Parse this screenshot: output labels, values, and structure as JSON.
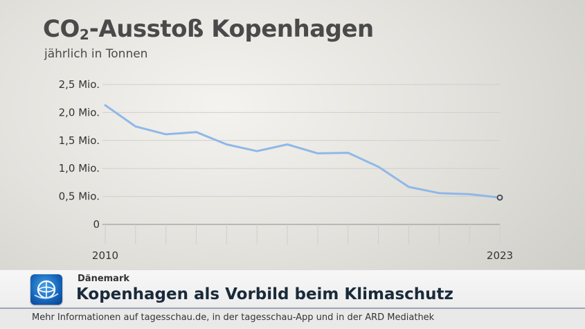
{
  "chart_data": {
    "type": "line",
    "title_main": "CO",
    "title_sub": "2",
    "title_rest": "-Ausstoß Kopenhagen",
    "subtitle": "jährlich in Tonnen",
    "x": [
      2010,
      2011,
      2012,
      2013,
      2014,
      2015,
      2016,
      2017,
      2018,
      2019,
      2020,
      2021,
      2022,
      2023
    ],
    "series": [
      {
        "values": [
          2.13,
          1.75,
          1.61,
          1.65,
          1.43,
          1.31,
          1.43,
          1.27,
          1.28,
          1.03,
          0.67,
          0.56,
          0.54,
          0.48
        ]
      }
    ],
    "yticks": [
      0,
      0.5,
      1.0,
      1.5,
      2.0,
      2.5
    ],
    "ytick_labels": [
      "0",
      "0,5 Mio.",
      "1,0 Mio.",
      "1,5 Mio.",
      "2,0 Mio.",
      "2,5 Mio."
    ],
    "xtick_labels_shown": [
      "2010",
      "2023"
    ],
    "ylim": [
      0,
      2.5
    ],
    "grid": true,
    "line_color": "#8fb8e8"
  },
  "lower_third": {
    "kicker": "Dänemark",
    "headline": "Kopenhagen als Vorbild beim Klimaschutz",
    "ticker": "Mehr Informationen auf tagesschau.de, in der tagesschau-App und in der ARD Mediathek"
  }
}
